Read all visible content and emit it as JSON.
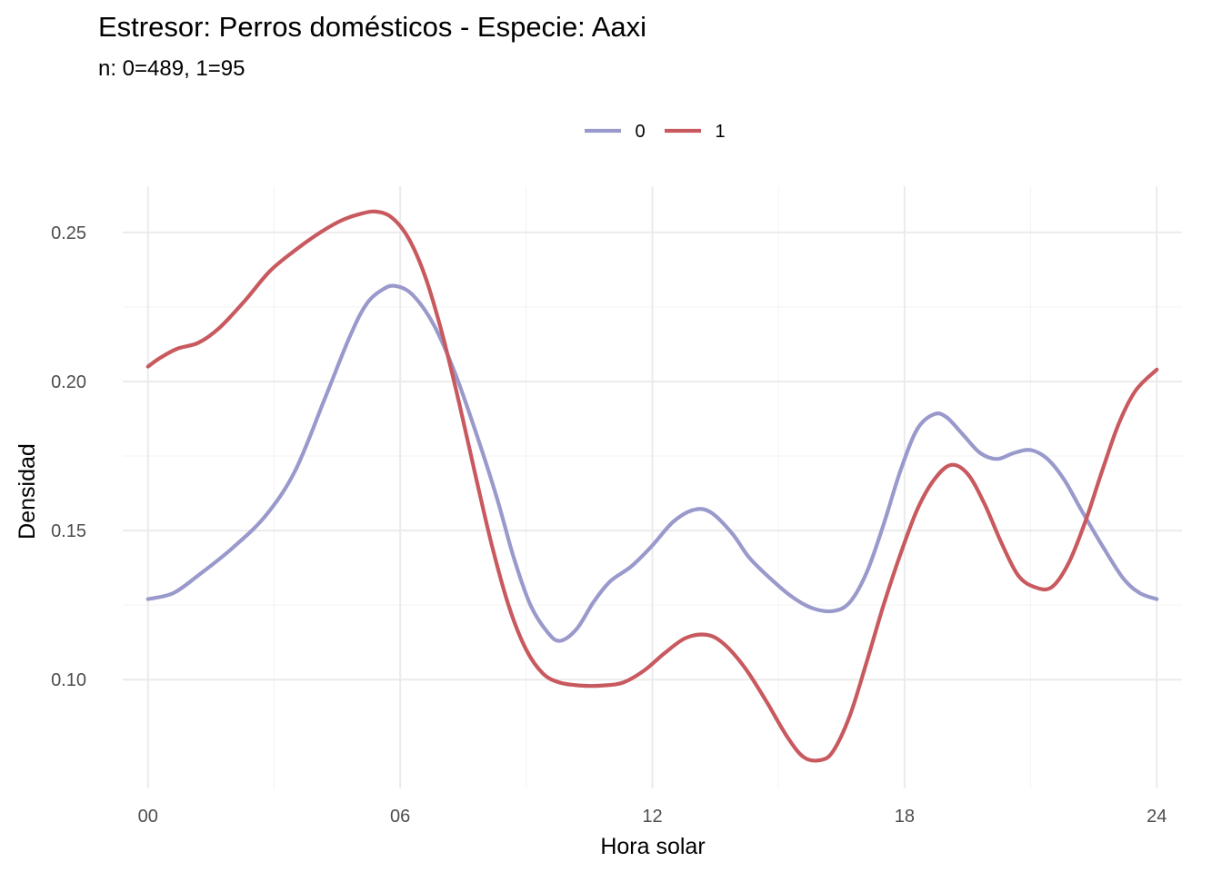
{
  "chart_data": {
    "type": "line",
    "title": "Estresor: Perros domésticos - Especie:  Aaxi",
    "subtitle": "n:  0=489, 1=95",
    "xlabel": "Hora solar",
    "ylabel": "Densidad",
    "xlim": [
      -0.6,
      24.6
    ],
    "ylim": [
      0.0635,
      0.2655
    ],
    "x_ticks": [
      0,
      6,
      12,
      18,
      24
    ],
    "x_tick_labels": [
      "00",
      "06",
      "12",
      "18",
      "24"
    ],
    "y_ticks": [
      0.1,
      0.15,
      0.2,
      0.25
    ],
    "y_tick_labels": [
      "0.10",
      "0.15",
      "0.20",
      "0.25"
    ],
    "grid": true,
    "legend_position": "top",
    "series": [
      {
        "name": "0",
        "color": "#9999cc",
        "x": [
          0,
          0.6,
          1.2,
          2.0,
          2.8,
          3.5,
          4.2,
          4.8,
          5.2,
          5.6,
          5.9,
          6.3,
          6.8,
          7.3,
          7.8,
          8.3,
          8.7,
          9.1,
          9.5,
          9.8,
          10.2,
          10.6,
          11.0,
          11.5,
          12.0,
          12.5,
          13.0,
          13.4,
          13.9,
          14.3,
          14.8,
          15.3,
          15.8,
          16.3,
          16.7,
          17.1,
          17.5,
          17.9,
          18.3,
          18.7,
          19.0,
          19.4,
          19.8,
          20.2,
          20.6,
          21.0,
          21.4,
          21.8,
          22.2,
          22.7,
          23.2,
          23.6,
          24.0
        ],
        "y": [
          0.127,
          0.129,
          0.135,
          0.144,
          0.155,
          0.17,
          0.194,
          0.215,
          0.226,
          0.231,
          0.232,
          0.229,
          0.219,
          0.203,
          0.183,
          0.161,
          0.141,
          0.125,
          0.116,
          0.113,
          0.117,
          0.126,
          0.133,
          0.138,
          0.145,
          0.153,
          0.157,
          0.156,
          0.149,
          0.141,
          0.134,
          0.128,
          0.124,
          0.123,
          0.126,
          0.136,
          0.152,
          0.17,
          0.184,
          0.189,
          0.188,
          0.182,
          0.176,
          0.174,
          0.176,
          0.177,
          0.174,
          0.167,
          0.157,
          0.145,
          0.134,
          0.129,
          0.127
        ]
      },
      {
        "name": "1",
        "color": "#c8595f",
        "x": [
          0,
          0.3,
          0.7,
          1.2,
          1.7,
          2.3,
          2.9,
          3.5,
          4.1,
          4.6,
          5.0,
          5.4,
          5.8,
          6.2,
          6.6,
          7.0,
          7.4,
          7.8,
          8.2,
          8.6,
          9.0,
          9.4,
          9.8,
          10.3,
          10.8,
          11.3,
          11.8,
          12.3,
          12.8,
          13.3,
          13.7,
          14.2,
          14.7,
          15.2,
          15.6,
          16.0,
          16.3,
          16.7,
          17.1,
          17.5,
          17.9,
          18.3,
          18.7,
          19.1,
          19.5,
          19.9,
          20.3,
          20.7,
          21.1,
          21.5,
          21.9,
          22.3,
          22.7,
          23.1,
          23.5,
          24.0
        ],
        "y": [
          0.205,
          0.208,
          0.211,
          0.213,
          0.218,
          0.227,
          0.237,
          0.244,
          0.25,
          0.254,
          0.256,
          0.257,
          0.255,
          0.248,
          0.235,
          0.216,
          0.193,
          0.168,
          0.144,
          0.124,
          0.11,
          0.102,
          0.099,
          0.098,
          0.098,
          0.099,
          0.103,
          0.109,
          0.114,
          0.115,
          0.112,
          0.104,
          0.093,
          0.081,
          0.074,
          0.073,
          0.076,
          0.088,
          0.106,
          0.125,
          0.142,
          0.157,
          0.167,
          0.172,
          0.169,
          0.159,
          0.146,
          0.135,
          0.131,
          0.131,
          0.139,
          0.153,
          0.17,
          0.186,
          0.197,
          0.204
        ]
      }
    ]
  }
}
